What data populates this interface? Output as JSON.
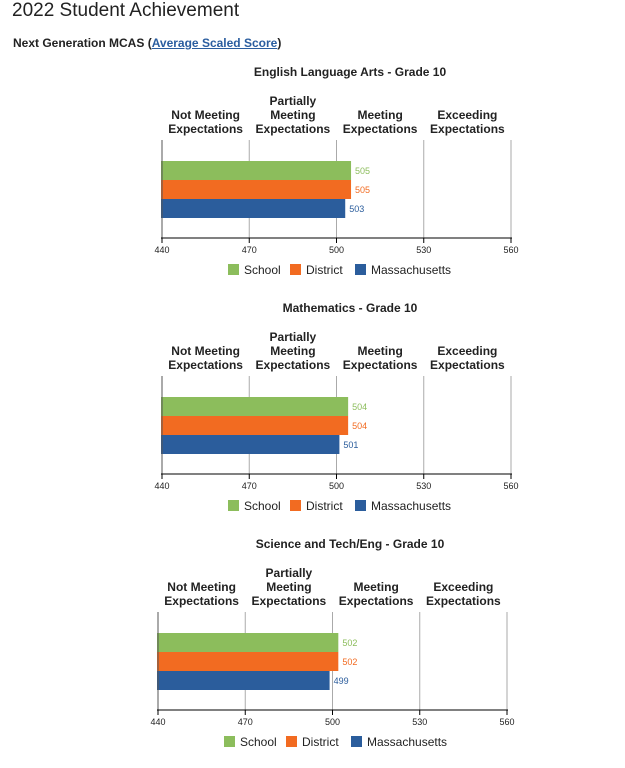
{
  "page": {
    "title": "2022 Student Achievement",
    "subtitle_prefix": "Next Generation MCAS (",
    "subtitle_link": "Average Scaled Score",
    "subtitle_suffix": ")"
  },
  "colors": {
    "school": "#8cbd5c",
    "district": "#f26b21",
    "massachusetts": "#2b5d9c",
    "axis": "#000000",
    "gridline": "#aaaaaa"
  },
  "chart_data": [
    {
      "type": "bar",
      "orientation": "horizontal",
      "title": "English Language Arts - Grade 10",
      "categories": [
        "Not Meeting Expectations",
        "Partially Meeting Expectations",
        "Meeting Expectations",
        "Exceeding Expectations"
      ],
      "category_lines": [
        [
          "Not Meeting",
          "Expectations"
        ],
        [
          "Partially",
          "Meeting",
          "Expectations"
        ],
        [
          "Meeting",
          "Expectations"
        ],
        [
          "Exceeding",
          "Expectations"
        ]
      ],
      "xlim": [
        440,
        560
      ],
      "ticks": [
        440,
        470,
        500,
        530,
        560
      ],
      "series": [
        {
          "name": "School",
          "value": 505
        },
        {
          "name": "District",
          "value": 505
        },
        {
          "name": "Massachusetts",
          "value": 503
        }
      ],
      "legend": "bottom-center"
    },
    {
      "type": "bar",
      "orientation": "horizontal",
      "title": "Mathematics - Grade 10",
      "categories": [
        "Not Meeting Expectations",
        "Partially Meeting Expectations",
        "Meeting Expectations",
        "Exceeding Expectations"
      ],
      "category_lines": [
        [
          "Not Meeting",
          "Expectations"
        ],
        [
          "Partially",
          "Meeting",
          "Expectations"
        ],
        [
          "Meeting",
          "Expectations"
        ],
        [
          "Exceeding",
          "Expectations"
        ]
      ],
      "xlim": [
        440,
        560
      ],
      "ticks": [
        440,
        470,
        500,
        530,
        560
      ],
      "series": [
        {
          "name": "School",
          "value": 504
        },
        {
          "name": "District",
          "value": 504
        },
        {
          "name": "Massachusetts",
          "value": 501
        }
      ],
      "legend": "bottom-center"
    },
    {
      "type": "bar",
      "orientation": "horizontal",
      "title": "Science and Tech/Eng - Grade 10",
      "categories": [
        "Not Meeting Expectations",
        "Partially Meeting Expectations",
        "Meeting Expectations",
        "Exceeding Expectations"
      ],
      "category_lines": [
        [
          "Not Meeting",
          "Expectations"
        ],
        [
          "Partially",
          "Meeting",
          "Expectations"
        ],
        [
          "Meeting",
          "Expectations"
        ],
        [
          "Exceeding",
          "Expectations"
        ]
      ],
      "xlim": [
        440,
        560
      ],
      "ticks": [
        440,
        470,
        500,
        530,
        560
      ],
      "series": [
        {
          "name": "School",
          "value": 502
        },
        {
          "name": "District",
          "value": 502
        },
        {
          "name": "Massachusetts",
          "value": 499
        }
      ],
      "legend": "bottom-center"
    }
  ]
}
